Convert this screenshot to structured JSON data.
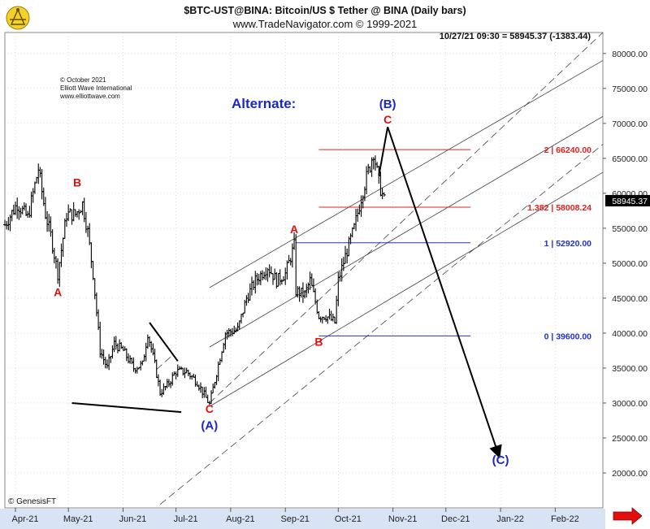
{
  "header": {
    "title": "$BTC-UST@BINA:  Bitcoin/US $ Tether @ BINA  (Daily bars)",
    "subtitle": "www.TradeNavigator.com © 1999-2021",
    "last_bar": "10/27/21 09:30 = 58945.37 (-1383.44)"
  },
  "credit": {
    "copyright": "© October 2021",
    "company": "Elliott Wave International",
    "website": "www.elliottwave.com",
    "vendor": "© GenesisFT"
  },
  "colors": {
    "wave_red": "#e01010",
    "wave_blue": "#1a28c8",
    "fib_red": "#e02020",
    "fib_blue": "#2030d0",
    "bars": "#000000",
    "grid": "#c8c8c8",
    "channel": "#444444",
    "x_axis_bg": "#d8e4f4"
  },
  "chart_data": {
    "type": "ohlc",
    "y_axis": {
      "min": 15000,
      "max": 83000,
      "side": "right",
      "ticks": [
        "20000.00",
        "25000.00",
        "30000.00",
        "35000.00",
        "40000.00",
        "45000.00",
        "50000.00",
        "55000.00",
        "60000.00",
        "65000.00",
        "70000.00",
        "75000.00",
        "80000.00"
      ]
    },
    "x_axis": {
      "start": "2021-03-26",
      "end": "2022-02-28",
      "ticks": [
        {
          "date": "2021-04-01",
          "label": "Apr-21"
        },
        {
          "date": "2021-05-01",
          "label": "May-21"
        },
        {
          "date": "2021-06-01",
          "label": "Jun-21"
        },
        {
          "date": "2021-07-01",
          "label": "Jul-21"
        },
        {
          "date": "2021-08-01",
          "label": "Aug-21"
        },
        {
          "date": "2021-09-01",
          "label": "Sep-21"
        },
        {
          "date": "2021-10-01",
          "label": "Oct-21"
        },
        {
          "date": "2021-11-01",
          "label": "Nov-21"
        },
        {
          "date": "2021-12-01",
          "label": "Dec-21"
        },
        {
          "date": "2022-01-01",
          "label": "Jan-22"
        },
        {
          "date": "2022-02-01",
          "label": "Feb-22"
        }
      ]
    },
    "price_path": [
      [
        "2021-03-26",
        55500
      ],
      [
        "2021-04-02",
        58500
      ],
      [
        "2021-04-08",
        56500
      ],
      [
        "2021-04-14",
        63500
      ],
      [
        "2021-04-18",
        57000
      ],
      [
        "2021-04-21",
        54000
      ],
      [
        "2021-04-25",
        48500
      ],
      [
        "2021-04-30",
        57000
      ],
      [
        "2021-05-05",
        57000
      ],
      [
        "2021-05-09",
        58500
      ],
      [
        "2021-05-12",
        54500
      ],
      [
        "2021-05-15",
        48500
      ],
      [
        "2021-05-19",
        37500
      ],
      [
        "2021-05-23",
        35000
      ],
      [
        "2021-05-27",
        38500
      ],
      [
        "2021-06-01",
        37500
      ],
      [
        "2021-06-07",
        35000
      ],
      [
        "2021-06-12",
        35500
      ],
      [
        "2021-06-15",
        40000
      ],
      [
        "2021-06-19",
        35500
      ],
      [
        "2021-06-22",
        31500
      ],
      [
        "2021-06-26",
        32500
      ],
      [
        "2021-07-01",
        34500
      ],
      [
        "2021-07-07",
        34500
      ],
      [
        "2021-07-13",
        33000
      ],
      [
        "2021-07-20",
        29800
      ],
      [
        "2021-07-25",
        35500
      ],
      [
        "2021-07-29",
        40000
      ],
      [
        "2021-08-05",
        40500
      ],
      [
        "2021-08-10",
        45000
      ],
      [
        "2021-08-15",
        47500
      ],
      [
        "2021-08-22",
        49500
      ],
      [
        "2021-08-27",
        47500
      ],
      [
        "2021-09-01",
        48500
      ],
      [
        "2021-09-06",
        52500
      ],
      [
        "2021-09-07",
        46000
      ],
      [
        "2021-09-12",
        45500
      ],
      [
        "2021-09-15",
        47500
      ],
      [
        "2021-09-20",
        42500
      ],
      [
        "2021-09-24",
        42500
      ],
      [
        "2021-09-29",
        41500
      ],
      [
        "2021-10-01",
        47500
      ],
      [
        "2021-10-05",
        51000
      ],
      [
        "2021-10-10",
        55000
      ],
      [
        "2021-10-15",
        60500
      ],
      [
        "2021-10-19",
        64000
      ],
      [
        "2021-10-21",
        66000
      ],
      [
        "2021-10-24",
        61500
      ],
      [
        "2021-10-27",
        58900
      ]
    ],
    "last_price": "58945.37",
    "fib_levels": [
      {
        "label": "2 | 66240.00",
        "value": 66240,
        "color": "red",
        "from": "2021-09-20",
        "to": "2021-12-15"
      },
      {
        "label": "1.382 | 58008.24",
        "value": 58008.24,
        "color": "red",
        "from": "2021-09-20",
        "to": "2021-12-15"
      },
      {
        "label": "1 | 52920.00",
        "value": 52920,
        "color": "blue",
        "from": "2021-09-07",
        "to": "2021-12-15"
      },
      {
        "label": "0 | 39600.00",
        "value": 39600,
        "color": "blue",
        "from": "2021-09-20",
        "to": "2021-12-15"
      }
    ],
    "wave_labels": [
      {
        "text": "A",
        "date": "2021-04-25",
        "value": 45300,
        "color": "red"
      },
      {
        "text": "B",
        "date": "2021-05-06",
        "value": 61000,
        "color": "red"
      },
      {
        "text": "C",
        "date": "2021-07-20",
        "value": 28600,
        "color": "red"
      },
      {
        "text": "(A)",
        "date": "2021-07-20",
        "value": 26200,
        "color": "blue"
      },
      {
        "text": "A",
        "date": "2021-09-06",
        "value": 54300,
        "color": "red"
      },
      {
        "text": "B",
        "date": "2021-09-20",
        "value": 38200,
        "color": "red"
      },
      {
        "text": "C",
        "date": "2021-10-29",
        "value": 70000,
        "color": "red"
      },
      {
        "text": "(B)",
        "date": "2021-10-29",
        "value": 72200,
        "color": "blue"
      },
      {
        "text": "(C)",
        "date": "2022-01-01",
        "value": 21300,
        "color": "blue"
      }
    ],
    "projection_arrows": [
      [
        [
          "2021-10-24",
          62500
        ],
        [
          "2021-10-29",
          69500
        ]
      ],
      [
        [
          "2021-10-29",
          69500
        ],
        [
          "2021-12-31",
          22500
        ]
      ]
    ],
    "triangle_lines": [
      [
        [
          "2021-06-16",
          41500
        ],
        [
          "2021-07-02",
          36000
        ]
      ],
      [
        [
          "2021-05-03",
          30000
        ],
        [
          "2021-07-04",
          28700
        ]
      ]
    ],
    "channel_lines": [
      {
        "style": "solid",
        "points": [
          [
            "2021-07-20",
            29500
          ],
          [
            "2022-02-28",
            63000
          ]
        ]
      },
      {
        "style": "solid",
        "points": [
          [
            "2021-07-20",
            38000
          ],
          [
            "2022-02-28",
            71000
          ]
        ]
      },
      {
        "style": "solid",
        "points": [
          [
            "2021-07-20",
            46500
          ],
          [
            "2022-02-28",
            79000
          ]
        ]
      },
      {
        "style": "dashed",
        "points": [
          [
            "2021-06-22",
            15500
          ],
          [
            "2022-02-28",
            67000
          ]
        ]
      },
      {
        "style": "dashed",
        "points": [
          [
            "2021-07-20",
            30000
          ],
          [
            "2022-02-28",
            83000
          ]
        ]
      },
      {
        "style": "dashed",
        "points": [
          [
            "2021-06-20",
            34800
          ],
          [
            "2021-06-28",
            36600
          ]
        ]
      }
    ],
    "annotation": "Alternate:"
  }
}
